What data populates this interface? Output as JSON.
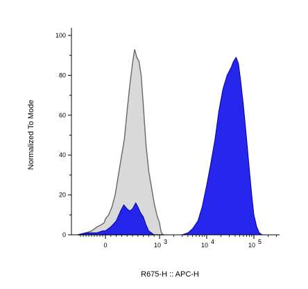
{
  "chart_data": {
    "type": "area",
    "title": "",
    "xlabel": "R675-H :: APC-H",
    "ylabel": "Normalized To Mode",
    "x_scale": "biexponential",
    "ylim": [
      0,
      100
    ],
    "y_ticks": [
      0,
      20,
      40,
      60,
      80,
      100
    ],
    "x_ticks": [
      {
        "value": 0,
        "label": "0"
      },
      {
        "value": 1000,
        "label": "10",
        "exp": "3"
      },
      {
        "value": 10000,
        "label": "10",
        "exp": "4"
      },
      {
        "value": 100000,
        "label": "10",
        "exp": "5"
      }
    ],
    "grid": false,
    "legend": "none",
    "series": [
      {
        "color": "#d9d9d9",
        "stroke": "#666666",
        "points": [
          [
            -1000,
            0
          ],
          [
            -700,
            1
          ],
          [
            -500,
            2
          ],
          [
            -300,
            4
          ],
          [
            -150,
            5
          ],
          [
            -50,
            6
          ],
          [
            0,
            8
          ],
          [
            60,
            10
          ],
          [
            120,
            14
          ],
          [
            180,
            20
          ],
          [
            240,
            30
          ],
          [
            300,
            40
          ],
          [
            350,
            48
          ],
          [
            400,
            62
          ],
          [
            450,
            75
          ],
          [
            500,
            86
          ],
          [
            540,
            93
          ],
          [
            580,
            89
          ],
          [
            620,
            87
          ],
          [
            660,
            80
          ],
          [
            700,
            65
          ],
          [
            750,
            45
          ],
          [
            800,
            32
          ],
          [
            850,
            24
          ],
          [
            900,
            16
          ],
          [
            950,
            10
          ],
          [
            1000,
            6
          ],
          [
            1050,
            3
          ],
          [
            1100,
            1
          ],
          [
            1200,
            0
          ]
        ]
      },
      {
        "color": "#1a1aeb",
        "stroke": "#0000a0",
        "points": [
          [
            -1000,
            0
          ],
          [
            -700,
            1
          ],
          [
            -500,
            1
          ],
          [
            -300,
            1
          ],
          [
            -100,
            2
          ],
          [
            0,
            2
          ],
          [
            100,
            4
          ],
          [
            200,
            7
          ],
          [
            280,
            12
          ],
          [
            340,
            15
          ],
          [
            400,
            13
          ],
          [
            450,
            12
          ],
          [
            500,
            13
          ],
          [
            560,
            16
          ],
          [
            600,
            14
          ],
          [
            650,
            11
          ],
          [
            700,
            9
          ],
          [
            750,
            5
          ],
          [
            800,
            2
          ],
          [
            850,
            1
          ],
          [
            900,
            0
          ]
        ]
      },
      {
        "color": "#1a1aeb",
        "stroke": "#0000a0",
        "points": [
          [
            3000,
            0
          ],
          [
            4000,
            1
          ],
          [
            5000,
            3
          ],
          [
            6500,
            7
          ],
          [
            8000,
            14
          ],
          [
            10000,
            25
          ],
          [
            12000,
            35
          ],
          [
            15000,
            48
          ],
          [
            18000,
            62
          ],
          [
            22000,
            73
          ],
          [
            27000,
            80
          ],
          [
            33000,
            84
          ],
          [
            37000,
            87
          ],
          [
            42000,
            89
          ],
          [
            47000,
            86
          ],
          [
            52000,
            78
          ],
          [
            60000,
            65
          ],
          [
            70000,
            48
          ],
          [
            80000,
            33
          ],
          [
            90000,
            20
          ],
          [
            100000,
            10
          ],
          [
            115000,
            4
          ],
          [
            130000,
            1
          ],
          [
            150000,
            0
          ]
        ]
      }
    ]
  }
}
